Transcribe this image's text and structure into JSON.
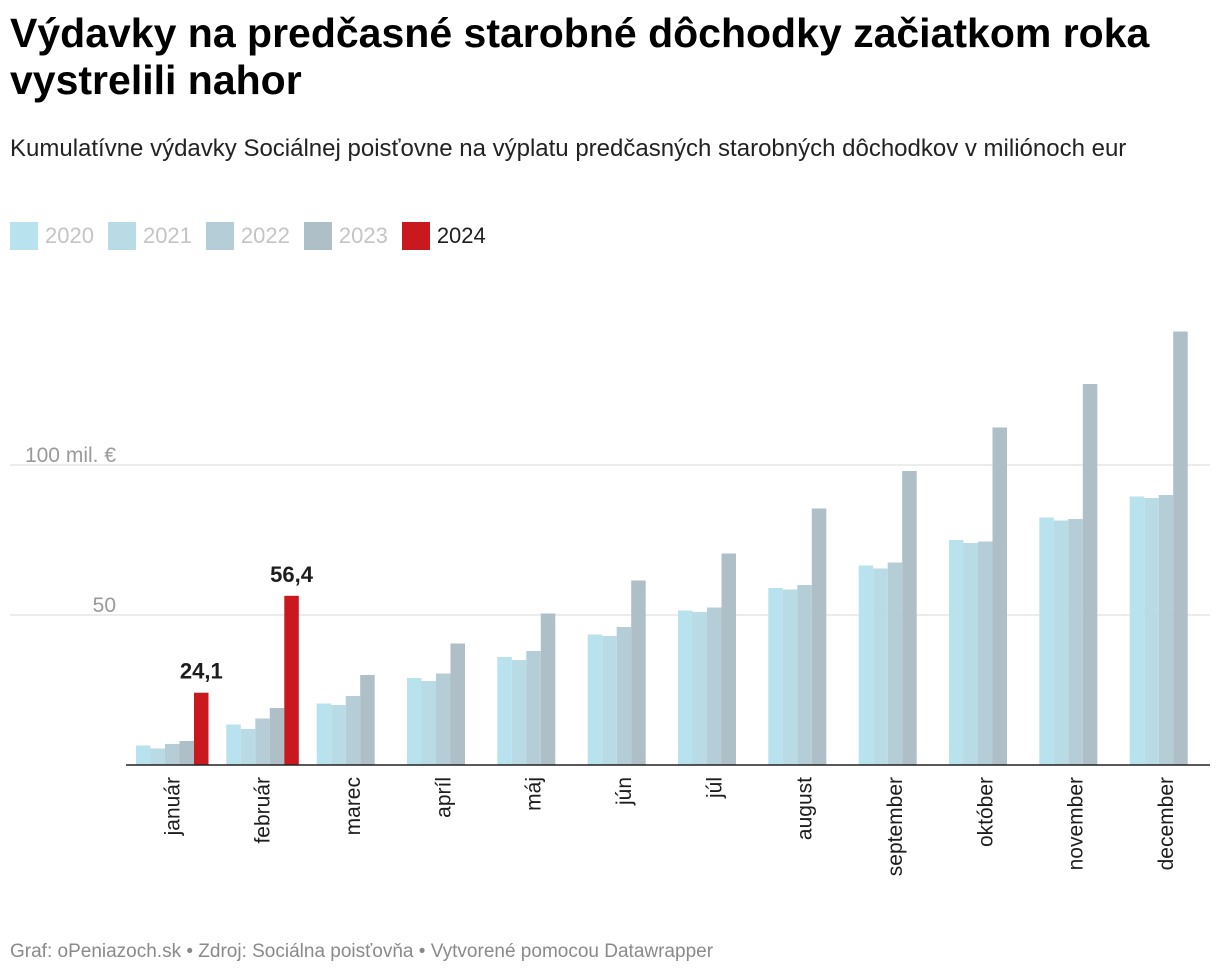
{
  "title": "Výdavky na predčasné starobné dôchodky začiatkom roka vystrelili nahor",
  "subtitle": "Kumulatívne výdavky Sociálnej poisťovne na výplatu predčasných starobných dôchodkov v miliónoch eur",
  "footer": {
    "text": "Graf: oPeniazoch.sk • Zdroj: Sociálna poisťovňa • Vytvorené pomocou Datawrapper"
  },
  "chart_data": {
    "type": "bar",
    "title": "Výdavky na predčasné starobné dôchodky začiatkom roka vystrelili nahor",
    "ylabel": "",
    "xlabel": "",
    "ylim": [
      0,
      150
    ],
    "y_ticks": [
      {
        "value": 50,
        "label": "50"
      },
      {
        "value": 100,
        "label": "100 mil. €"
      }
    ],
    "grid": true,
    "legend_position": "top-left",
    "categories": [
      "január",
      "február",
      "marec",
      "apríl",
      "máj",
      "jún",
      "júl",
      "august",
      "september",
      "október",
      "november",
      "december"
    ],
    "series": [
      {
        "name": "2020",
        "color": "#b8e2ee",
        "legend_text_color": "#c4c4c4",
        "values": [
          6.5,
          13.5,
          20.5,
          29,
          36,
          43.5,
          51.5,
          59,
          66.5,
          75,
          82.5,
          89.5
        ]
      },
      {
        "name": "2021",
        "color": "#b8dbe6",
        "legend_text_color": "#c4c4c4",
        "values": [
          5.5,
          12,
          20,
          28,
          35,
          43,
          51,
          58.5,
          65.5,
          74,
          81.5,
          89
        ]
      },
      {
        "name": "2022",
        "color": "#b5cdd6",
        "legend_text_color": "#c4c4c4",
        "values": [
          7,
          15.5,
          23,
          30.5,
          38,
          46,
          52.5,
          60,
          67.5,
          74.5,
          82,
          90
        ]
      },
      {
        "name": "2023",
        "color": "#afbfc7",
        "legend_text_color": "#c4c4c4",
        "values": [
          8,
          19,
          30,
          40.5,
          50.5,
          61.5,
          70.5,
          85.5,
          98,
          112.5,
          127,
          144.5
        ]
      },
      {
        "name": "2024",
        "color": "#c9191e",
        "legend_text_color": "#1d1d1d",
        "values": [
          24.1,
          56.4,
          null,
          null,
          null,
          null,
          null,
          null,
          null,
          null,
          null,
          null
        ]
      }
    ],
    "annotations": [
      {
        "series": "2024",
        "category": "január",
        "label": "24,1"
      },
      {
        "series": "2024",
        "category": "február",
        "label": "56,4"
      }
    ]
  }
}
